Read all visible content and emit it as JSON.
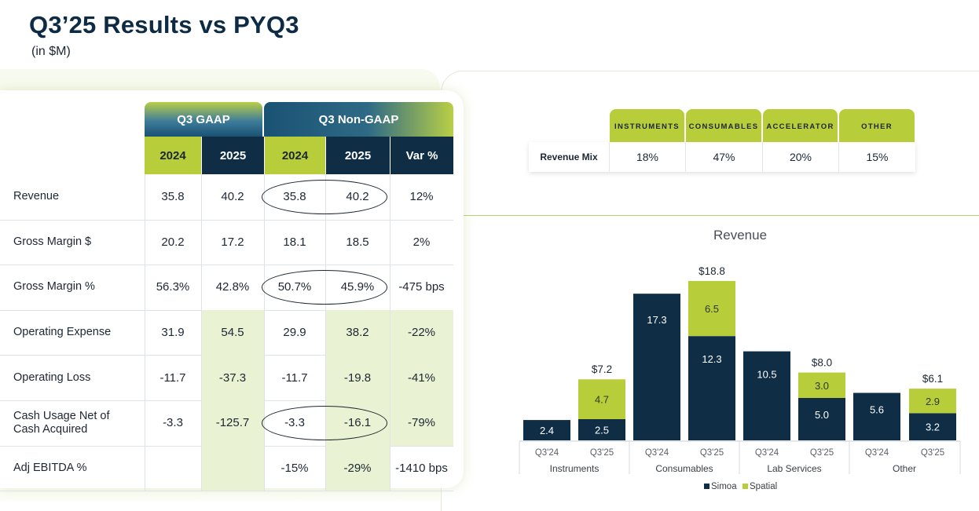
{
  "title": "Q3’25 Results vs PYQ3",
  "subtitle": "(in $M)",
  "table": {
    "group_headers": [
      "Q3 GAAP",
      "Q3 Non-GAAP"
    ],
    "year_headers": [
      "2024",
      "2025",
      "2024",
      "2025",
      "Var %"
    ],
    "rows": [
      {
        "label": "Revenue",
        "values": [
          "35.8",
          "40.2",
          "35.8",
          "40.2",
          "12%"
        ]
      },
      {
        "label": "Gross Margin $",
        "values": [
          "20.2",
          "17.2",
          "18.1",
          "18.5",
          "2%"
        ]
      },
      {
        "label": "Gross Margin %",
        "values": [
          "56.3%",
          "42.8%",
          "50.7%",
          "45.9%",
          "-475 bps"
        ]
      },
      {
        "label": "Operating Expense",
        "values": [
          "31.9",
          "54.5",
          "29.9",
          "38.2",
          "-22%"
        ]
      },
      {
        "label": "Operating Loss",
        "values": [
          "-11.7",
          "-37.3",
          "-11.7",
          "-19.8",
          "-41%"
        ]
      },
      {
        "label": "Cash Usage Net of\nCash Acquired",
        "values": [
          "-3.3",
          "-125.7",
          "-3.3",
          "-16.1",
          "-79%"
        ]
      },
      {
        "label": "Adj EBITDA %",
        "values": [
          "",
          "",
          "-15%",
          "-29%",
          "-1410 bps"
        ]
      }
    ]
  },
  "revenue_mix": {
    "row_label": "Revenue Mix",
    "headers": [
      "INSTRUMENTS",
      "CONSUMABLES",
      "ACCELERATOR",
      "OTHER"
    ],
    "values": [
      "18%",
      "47%",
      "20%",
      "15%"
    ]
  },
  "colors": {
    "navy": "#0f2d45",
    "green": "#b8cd3a",
    "light_green": "#e9f2d2"
  },
  "chart_data": {
    "type": "bar",
    "stacked": true,
    "title": "Revenue",
    "groups": [
      "Instruments",
      "Consumables",
      "Lab Services",
      "Other"
    ],
    "categories": [
      "Q3'24",
      "Q3'25",
      "Q3'24",
      "Q3'25",
      "Q3'24",
      "Q3'25",
      "Q3'24",
      "Q3'25"
    ],
    "series": [
      {
        "name": "Simoa",
        "color": "#0f2d45",
        "values": [
          2.4,
          2.5,
          17.3,
          12.3,
          10.5,
          5.0,
          5.6,
          3.2
        ]
      },
      {
        "name": "Spatial",
        "color": "#b8cd3a",
        "values": [
          0,
          4.7,
          0,
          6.5,
          0,
          3.0,
          0,
          2.9
        ]
      }
    ],
    "series_labels": [
      [
        "2.4",
        "2.5",
        "17.3",
        "12.3",
        "10.5",
        "5.0",
        "5.6",
        "3.2"
      ],
      [
        "",
        "4.7",
        "",
        "6.5",
        "",
        "3.0",
        "",
        "2.9"
      ]
    ],
    "totals": [
      "",
      "$7.2",
      "",
      "$18.8",
      "",
      "$8.0",
      "",
      "$6.1"
    ],
    "legend": [
      "Simoa",
      "Spatial"
    ],
    "legend_position": "bottom",
    "ylim": [
      0,
      20
    ]
  }
}
